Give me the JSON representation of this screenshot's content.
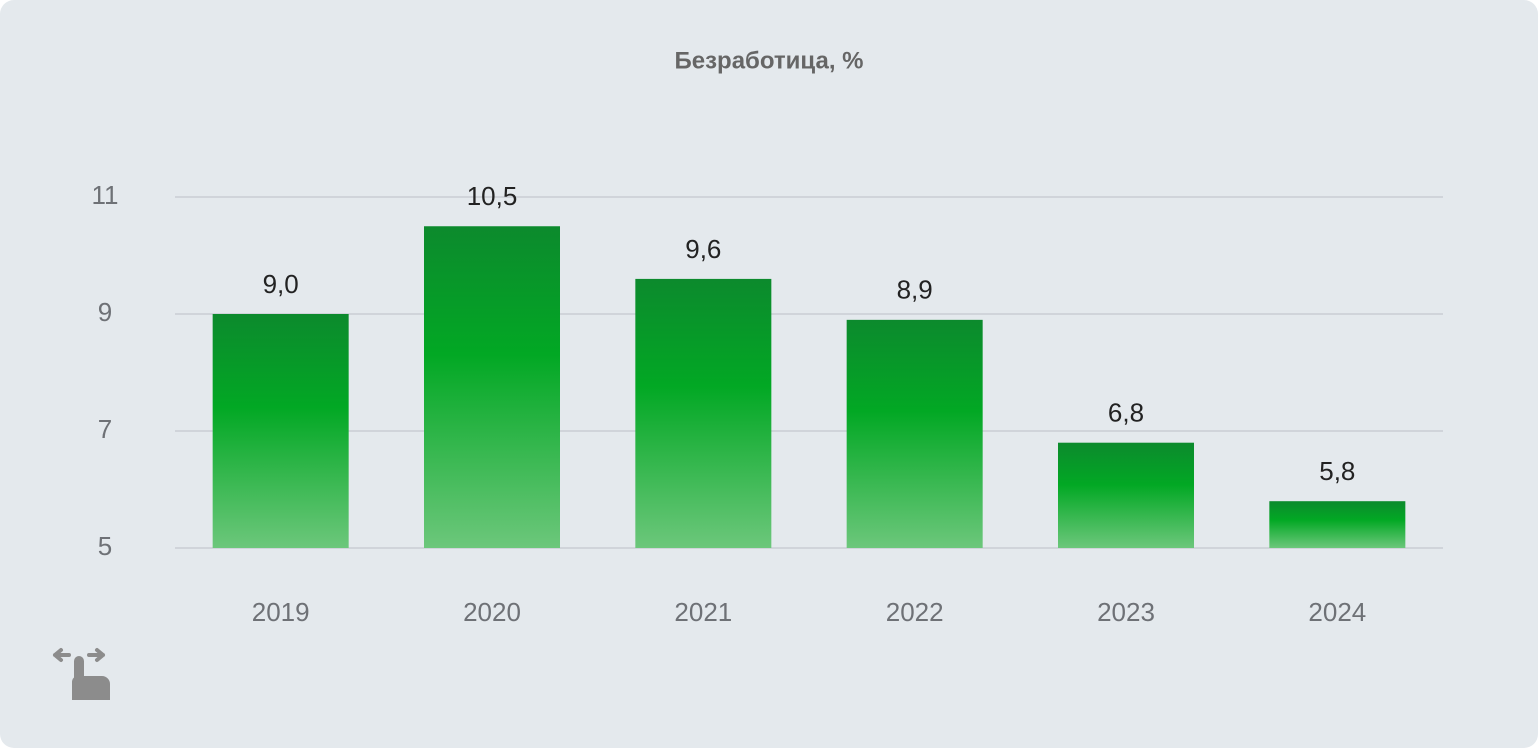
{
  "chart_data": {
    "type": "bar",
    "title": "Безработица, %",
    "categories": [
      "2019",
      "2020",
      "2021",
      "2022",
      "2023",
      "2024"
    ],
    "values": [
      9.0,
      10.5,
      9.6,
      8.9,
      6.8,
      5.8
    ],
    "value_labels": [
      "9,0",
      "10,5",
      "9,6",
      "8,9",
      "6,8",
      "5,8"
    ],
    "color": "#00a823",
    "ylim": [
      5,
      11
    ],
    "yticks": [
      5,
      7,
      9,
      11
    ],
    "grid": true
  }
}
